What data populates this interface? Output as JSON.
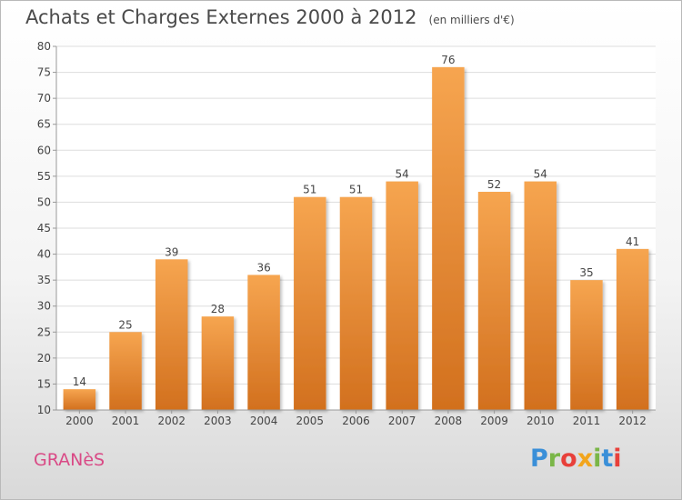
{
  "header": {
    "title": "Achats et Charges Externes 2000 à 2012",
    "unit": "(en milliers d'€)"
  },
  "footer": {
    "commune": "GRANèS",
    "logo_text": "Proxiti",
    "logo_colors": [
      "#3a8fd8",
      "#7ab648",
      "#e8403a",
      "#f2a51c",
      "#7ab648",
      "#3a8fd8",
      "#e8403a"
    ]
  },
  "colors": {
    "bar_top": "#f6a550",
    "bar_bottom": "#d2701e",
    "axis_text": "#444444",
    "grid": "#dddddd"
  },
  "chart_data": {
    "type": "bar",
    "title": "Achats et Charges Externes 2000 à 2012",
    "subtitle": "(en milliers d'€)",
    "categories": [
      "2000",
      "2001",
      "2002",
      "2003",
      "2004",
      "2005",
      "2006",
      "2007",
      "2008",
      "2009",
      "2010",
      "2011",
      "2012"
    ],
    "values": [
      14,
      25,
      39,
      28,
      36,
      51,
      51,
      54,
      76,
      52,
      54,
      35,
      41
    ],
    "ylim": [
      10,
      80
    ],
    "yticks": [
      10,
      15,
      20,
      25,
      30,
      35,
      40,
      45,
      50,
      55,
      60,
      65,
      70,
      75,
      80
    ],
    "grid": true,
    "xlabel": "",
    "ylabel": ""
  }
}
